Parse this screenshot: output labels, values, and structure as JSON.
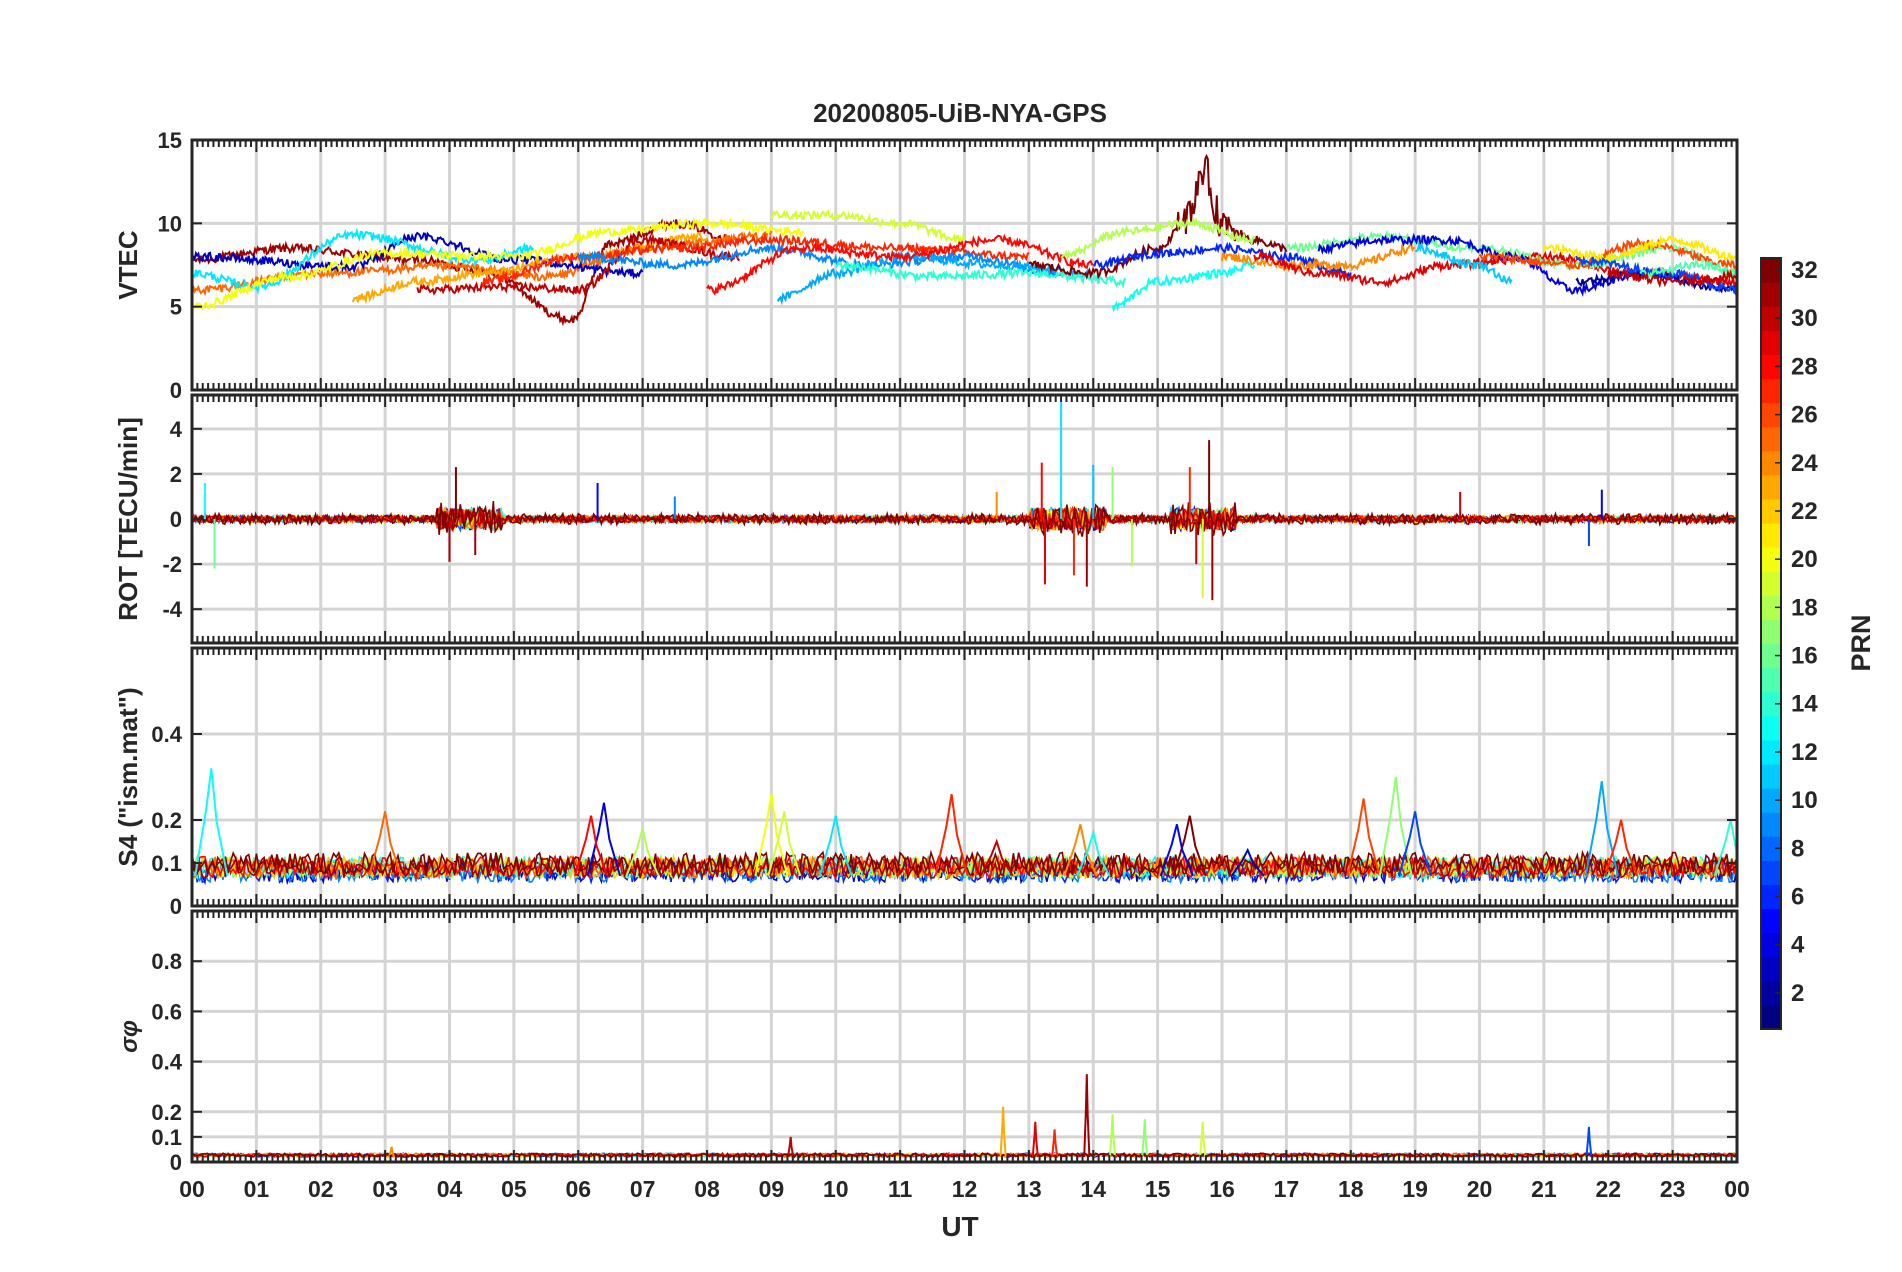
{
  "chart_data": {
    "type": "line",
    "title": "20200805-UiB-NYA-GPS",
    "xlabel": "UT",
    "x_range_hours": [
      0,
      24
    ],
    "x_tick_labels": [
      "00",
      "01",
      "02",
      "03",
      "04",
      "05",
      "06",
      "07",
      "08",
      "09",
      "10",
      "11",
      "12",
      "13",
      "14",
      "15",
      "16",
      "17",
      "18",
      "19",
      "20",
      "21",
      "22",
      "23",
      "00"
    ],
    "colorbar": {
      "label": "PRN",
      "range": [
        1,
        32
      ],
      "tick_labels": [
        "2",
        "4",
        "6",
        "8",
        "10",
        "12",
        "14",
        "16",
        "18",
        "20",
        "22",
        "24",
        "26",
        "28",
        "30",
        "32"
      ],
      "colormap": "jet"
    },
    "panels": [
      {
        "name": "vtec",
        "ylabel": "VTEC",
        "ylim": [
          0,
          15
        ],
        "ytick_labels": [
          "0",
          "5",
          "10",
          "15"
        ],
        "profiles": [
          {
            "prn": 31,
            "t": [
              0,
              1.5,
              3.5,
              4.5,
              5.9,
              6.5,
              7.5,
              8.5
            ],
            "v": [
              7.8,
              8.5,
              7.8,
              7.2,
              4.2,
              8.8,
              10.0,
              9.0
            ]
          },
          {
            "prn": 25,
            "t": [
              0,
              2,
              4,
              5.5,
              7,
              9
            ],
            "v": [
              6.0,
              7.0,
              7.4,
              6.8,
              8.5,
              9.3
            ]
          },
          {
            "prn": 3,
            "t": [
              0,
              2.5,
              3.5,
              5,
              7
            ],
            "v": [
              8.0,
              7.4,
              9.2,
              7.8,
              7.0
            ]
          },
          {
            "prn": 12,
            "t": [
              0,
              1,
              2.5,
              4.5,
              5.3
            ],
            "v": [
              7.0,
              6.2,
              9.3,
              7.8,
              8.5
            ]
          },
          {
            "prn": 20,
            "t": [
              0,
              1.5,
              3,
              5,
              6.5,
              8,
              9.5
            ],
            "v": [
              5.0,
              6.8,
              8.2,
              8.0,
              9.5,
              10.0,
              9.5
            ]
          },
          {
            "prn": 23,
            "t": [
              2.5,
              3.5,
              4.5,
              6,
              8
            ],
            "v": [
              5.5,
              6.5,
              7.0,
              8.0,
              9.2
            ]
          },
          {
            "prn": 30,
            "t": [
              3.5,
              5,
              6,
              7,
              8.5
            ],
            "v": [
              6.0,
              6.2,
              6.0,
              9.0,
              8.0
            ]
          },
          {
            "prn": 27,
            "t": [
              4.5,
              6,
              7.5,
              9,
              11,
              13
            ],
            "v": [
              6.5,
              8.0,
              8.5,
              9.0,
              8.5,
              8.0
            ]
          },
          {
            "prn": 9,
            "t": [
              6,
              7.5,
              9,
              10.5,
              12,
              13.5
            ],
            "v": [
              8.0,
              7.5,
              8.5,
              7.5,
              8.0,
              7.0
            ]
          },
          {
            "prn": 19,
            "t": [
              9,
              10,
              11,
              12
            ],
            "v": [
              10.5,
              10.5,
              10.0,
              9.0
            ]
          },
          {
            "prn": 10,
            "t": [
              9.1,
              10,
              11,
              12.5,
              14
            ],
            "v": [
              5.5,
              7.0,
              8.0,
              7.5,
              7.0
            ]
          },
          {
            "prn": 28,
            "t": [
              8,
              9.5,
              11,
              12.5,
              14
            ],
            "v": [
              6.0,
              8.5,
              8.0,
              9.0,
              7.5
            ]
          },
          {
            "prn": 14,
            "t": [
              10,
              11.5,
              13,
              14.5
            ],
            "v": [
              7.5,
              6.8,
              7.0,
              6.5
            ]
          },
          {
            "prn": 32,
            "t": [
              13,
              14,
              15,
              15.5,
              15.7,
              16,
              16.5,
              17
            ],
            "v": [
              7.5,
              7.0,
              8.5,
              10.5,
              13.2,
              10.0,
              9.0,
              8.5
            ]
          },
          {
            "prn": 18,
            "t": [
              13.5,
              14.5,
              15.5,
              16.5
            ],
            "v": [
              8.0,
              9.5,
              10.0,
              9.0
            ]
          },
          {
            "prn": 13,
            "t": [
              14.3,
              15,
              16,
              16.5
            ],
            "v": [
              5.0,
              6.5,
              7.0,
              7.5
            ]
          },
          {
            "prn": 6,
            "t": [
              14,
              15,
              16,
              17,
              18
            ],
            "v": [
              7.5,
              8.2,
              8.5,
              8.0,
              7.0
            ]
          },
          {
            "prn": 24,
            "t": [
              16,
              17,
              18,
              19
            ],
            "v": [
              8.0,
              7.5,
              7.5,
              8.5
            ]
          },
          {
            "prn": 29,
            "t": [
              16.5,
              17.5,
              18.5,
              19.5,
              21,
              22.5,
              24
            ],
            "v": [
              8.0,
              7.0,
              6.5,
              7.5,
              8.0,
              7.0,
              6.5
            ]
          },
          {
            "prn": 16,
            "t": [
              17,
              18.5,
              20,
              21.5,
              23,
              24
            ],
            "v": [
              8.5,
              9.2,
              8.5,
              7.5,
              8.5,
              7.0
            ]
          },
          {
            "prn": 4,
            "t": [
              17.5,
              18.5,
              19.5,
              20.5,
              21.5,
              22.5
            ],
            "v": [
              8.5,
              9.0,
              9.0,
              8.0,
              6.0,
              7.0
            ]
          },
          {
            "prn": 11,
            "t": [
              19,
              20,
              20.5
            ],
            "v": [
              8.5,
              7.5,
              6.5
            ]
          },
          {
            "prn": 26,
            "t": [
              20,
              21.5,
              22.5,
              24
            ],
            "v": [
              8.0,
              7.5,
              8.8,
              7.5
            ]
          },
          {
            "prn": 21,
            "t": [
              21,
              22,
              23,
              24
            ],
            "v": [
              8.5,
              8.0,
              9.0,
              8.0
            ]
          },
          {
            "prn": 2,
            "t": [
              21.5,
              22.5,
              24
            ],
            "v": [
              6.5,
              7.0,
              6.0
            ]
          },
          {
            "prn": 7,
            "t": [
              21.5,
              23,
              24
            ],
            "v": [
              7.8,
              7.0,
              6.0
            ]
          },
          {
            "prn": 15,
            "t": [
              22.5,
              23.5,
              24
            ],
            "v": [
              7.0,
              7.5,
              7.0
            ]
          },
          {
            "prn": 30,
            "t": [
              22,
              23,
              24
            ],
            "v": [
              7.0,
              6.5,
              6.8
            ]
          }
        ]
      },
      {
        "name": "rot",
        "ylabel": "ROT [TECU/min]",
        "ylim": [
          -5.5,
          5.5
        ],
        "ytick_labels": [
          "-4",
          "-2",
          "0",
          "2",
          "4"
        ],
        "noise_level": 0.3,
        "spikes": [
          {
            "t": 0.35,
            "v": -2.2,
            "prn": 16
          },
          {
            "t": 0.2,
            "v": 1.6,
            "prn": 13
          },
          {
            "t": 4.0,
            "v": -1.9,
            "prn": 30
          },
          {
            "t": 4.1,
            "v": 2.3,
            "prn": 32
          },
          {
            "t": 4.4,
            "v": -1.6,
            "prn": 31
          },
          {
            "t": 6.3,
            "v": 1.6,
            "prn": 5
          },
          {
            "t": 7.5,
            "v": 1.0,
            "prn": 9
          },
          {
            "t": 12.5,
            "v": 1.2,
            "prn": 24
          },
          {
            "t": 13.2,
            "v": 2.5,
            "prn": 28
          },
          {
            "t": 13.25,
            "v": -2.9,
            "prn": 29
          },
          {
            "t": 13.5,
            "v": 5.2,
            "prn": 12
          },
          {
            "t": 13.7,
            "v": -2.5,
            "prn": 27
          },
          {
            "t": 13.9,
            "v": -3.0,
            "prn": 31
          },
          {
            "t": 14.0,
            "v": 2.4,
            "prn": 11
          },
          {
            "t": 14.3,
            "v": 2.3,
            "prn": 17
          },
          {
            "t": 14.6,
            "v": -2.1,
            "prn": 18
          },
          {
            "t": 15.5,
            "v": 2.3,
            "prn": 27
          },
          {
            "t": 15.6,
            "v": -2.0,
            "prn": 30
          },
          {
            "t": 15.7,
            "v": -3.5,
            "prn": 19
          },
          {
            "t": 15.8,
            "v": 3.5,
            "prn": 32
          },
          {
            "t": 15.85,
            "v": -3.6,
            "prn": 31
          },
          {
            "t": 19.7,
            "v": 1.2,
            "prn": 30
          },
          {
            "t": 21.7,
            "v": -1.2,
            "prn": 7
          },
          {
            "t": 21.9,
            "v": 1.3,
            "prn": 5
          }
        ]
      },
      {
        "name": "s4",
        "ylabel": "S4 (\"ism.mat\")",
        "ylim": [
          0,
          0.6
        ],
        "ytick_labels": [
          "0",
          "0.1",
          "0.2",
          "0.4"
        ],
        "baseline": 0.07,
        "peaks": [
          {
            "t": 0.3,
            "v": 0.32,
            "prn": 13
          },
          {
            "t": 3.0,
            "v": 0.22,
            "prn": 25
          },
          {
            "t": 6.4,
            "v": 0.24,
            "prn": 4
          },
          {
            "t": 6.2,
            "v": 0.21,
            "prn": 28
          },
          {
            "t": 7.0,
            "v": 0.18,
            "prn": 18
          },
          {
            "t": 9.0,
            "v": 0.26,
            "prn": 20
          },
          {
            "t": 9.2,
            "v": 0.22,
            "prn": 19
          },
          {
            "t": 10.0,
            "v": 0.21,
            "prn": 12
          },
          {
            "t": 11.8,
            "v": 0.26,
            "prn": 27
          },
          {
            "t": 12.5,
            "v": 0.15,
            "prn": 30
          },
          {
            "t": 13.8,
            "v": 0.19,
            "prn": 24
          },
          {
            "t": 14.0,
            "v": 0.17,
            "prn": 13
          },
          {
            "t": 15.5,
            "v": 0.21,
            "prn": 32
          },
          {
            "t": 15.3,
            "v": 0.19,
            "prn": 5
          },
          {
            "t": 16.4,
            "v": 0.13,
            "prn": 3
          },
          {
            "t": 18.2,
            "v": 0.25,
            "prn": 26
          },
          {
            "t": 18.7,
            "v": 0.3,
            "prn": 17
          },
          {
            "t": 19.0,
            "v": 0.22,
            "prn": 7
          },
          {
            "t": 21.9,
            "v": 0.29,
            "prn": 10
          },
          {
            "t": 22.2,
            "v": 0.2,
            "prn": 27
          },
          {
            "t": 23.9,
            "v": 0.2,
            "prn": 14
          }
        ]
      },
      {
        "name": "sigma_phi",
        "ylabel": "σφ",
        "ylim": [
          0,
          1
        ],
        "ytick_labels": [
          "0",
          "0.1",
          "0.2",
          "0.4",
          "0.6",
          "0.8"
        ],
        "baseline": 0.02,
        "peaks": [
          {
            "t": 3.1,
            "v": 0.06,
            "prn": 24
          },
          {
            "t": 9.3,
            "v": 0.1,
            "prn": 30
          },
          {
            "t": 12.6,
            "v": 0.22,
            "prn": 23
          },
          {
            "t": 13.1,
            "v": 0.16,
            "prn": 29
          },
          {
            "t": 13.4,
            "v": 0.13,
            "prn": 27
          },
          {
            "t": 13.9,
            "v": 0.35,
            "prn": 31
          },
          {
            "t": 14.3,
            "v": 0.19,
            "prn": 18
          },
          {
            "t": 14.8,
            "v": 0.17,
            "prn": 17
          },
          {
            "t": 15.7,
            "v": 0.16,
            "prn": 19
          },
          {
            "t": 21.7,
            "v": 0.14,
            "prn": 7
          }
        ]
      }
    ]
  }
}
